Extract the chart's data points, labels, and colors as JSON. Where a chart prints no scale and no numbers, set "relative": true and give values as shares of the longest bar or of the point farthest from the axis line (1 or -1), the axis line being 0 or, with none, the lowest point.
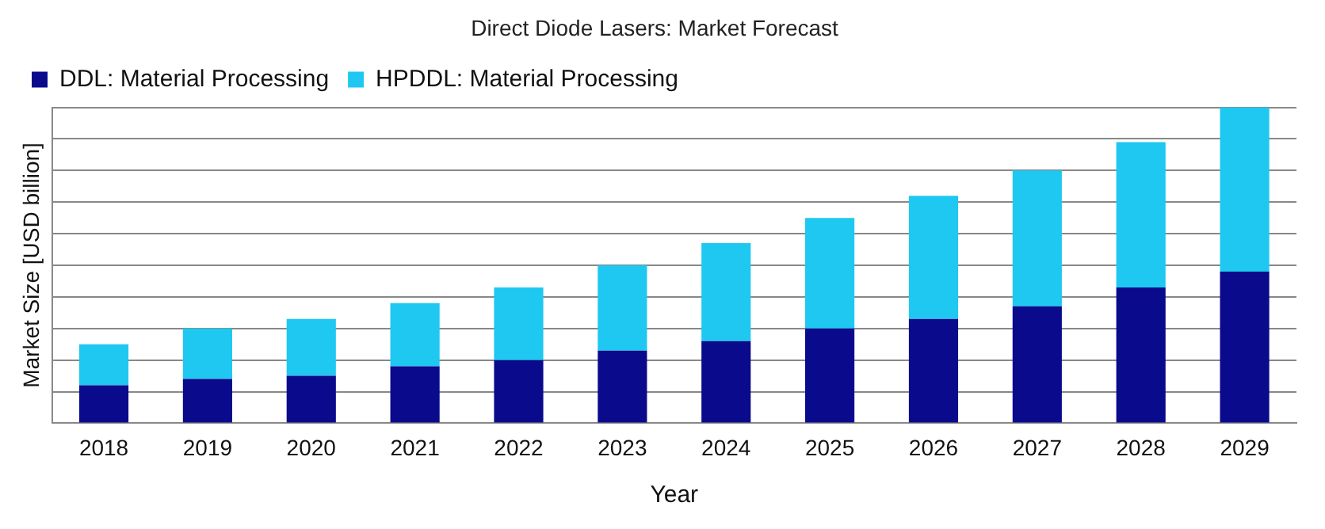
{
  "chart_data": {
    "type": "bar",
    "title": "Direct Diode Lasers: Market Forecast",
    "xlabel": "Year",
    "ylabel": "Market Size [USD billion]",
    "relative": true,
    "stacked": true,
    "grid": "y",
    "legend": "top left",
    "categories": [
      "2018",
      "2019",
      "2020",
      "2021",
      "2022",
      "2023",
      "2024",
      "2025",
      "2026",
      "2027",
      "2028",
      "2029"
    ],
    "series": [
      {
        "name": "DDL: Material Processing",
        "color": "#0a0a8c",
        "values": [
          0.12,
          0.14,
          0.15,
          0.18,
          0.2,
          0.23,
          0.26,
          0.3,
          0.33,
          0.37,
          0.43,
          0.48
        ]
      },
      {
        "name": "HPDDL: Material Processing",
        "color": "#1ec8f0",
        "values": [
          0.13,
          0.16,
          0.18,
          0.2,
          0.23,
          0.27,
          0.31,
          0.35,
          0.39,
          0.43,
          0.46,
          0.52
        ]
      }
    ]
  }
}
